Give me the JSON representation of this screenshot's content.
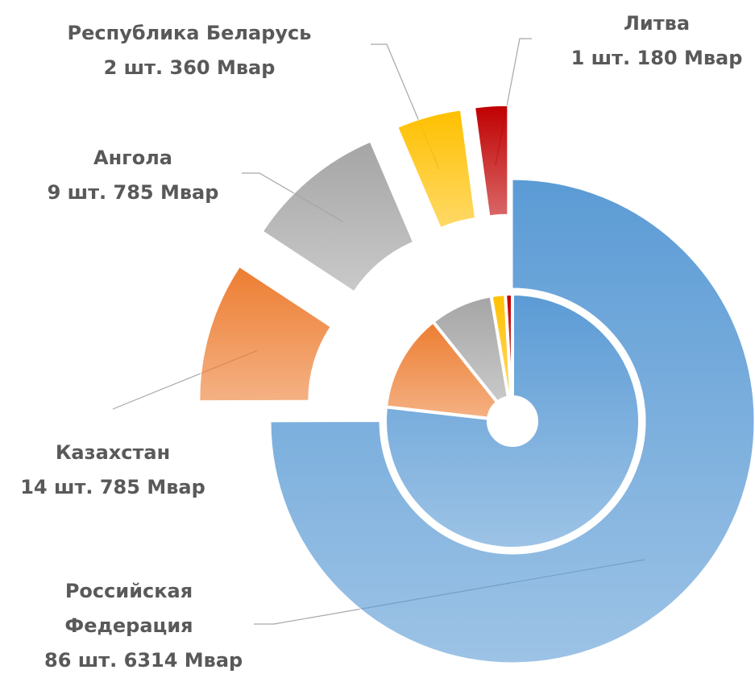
{
  "chart_data": {
    "type": "double-donut",
    "categories": [
      "Российская Федерация",
      "Казахстан",
      "Ангола",
      "Республика Беларусь",
      "Литва"
    ],
    "colors": [
      "#5b9bd5",
      "#ed7d31",
      "#a5a5a5",
      "#ffc000",
      "#c00000"
    ],
    "series": [
      {
        "values": [
          6314,
          785,
          785,
          360,
          180
        ],
        "value_labels": [
          "86 шт. 6314 Мвар",
          "14 шт. 785 Мвар",
          "9 шт. 785 Мвар",
          "2 шт. 360 Мвар",
          "1 шт. 180 Мвар"
        ]
      },
      {
        "values": [
          86,
          14,
          9,
          2,
          1
        ]
      }
    ]
  }
}
